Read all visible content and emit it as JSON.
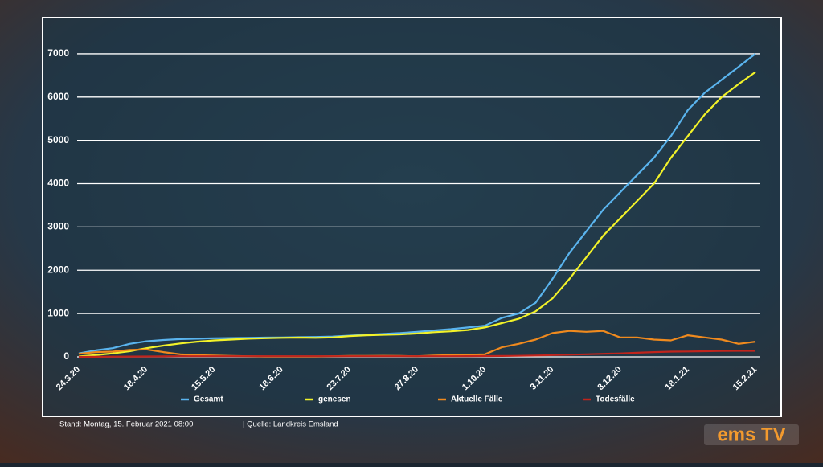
{
  "chart_data": {
    "type": "line",
    "categories": [
      "24.3.20",
      null,
      null,
      null,
      "18.4.20",
      null,
      null,
      null,
      "15.5.20",
      null,
      null,
      null,
      "18.6.20",
      null,
      null,
      null,
      "23.7.20",
      null,
      null,
      null,
      "27.8.20",
      null,
      null,
      null,
      "1.10.20",
      null,
      null,
      null,
      "3.11.20",
      null,
      null,
      null,
      "8.12.20",
      null,
      null,
      null,
      "18.1.21",
      null,
      null,
      null,
      "15.2.21"
    ],
    "series": [
      {
        "name": "Gesamt",
        "color": "#5ab4ee",
        "values": [
          80,
          150,
          200,
          300,
          360,
          390,
          410,
          420,
          430,
          435,
          440,
          445,
          450,
          455,
          460,
          470,
          490,
          510,
          530,
          550,
          580,
          610,
          640,
          680,
          720,
          900,
          1000,
          1250,
          1800,
          2400,
          2900,
          3400,
          3800,
          4200,
          4600,
          5100,
          5700,
          6100,
          6400,
          6700,
          7000
        ]
      },
      {
        "name": "genesen",
        "color": "#f2f229",
        "values": [
          10,
          40,
          80,
          130,
          200,
          260,
          310,
          350,
          380,
          400,
          420,
          430,
          440,
          445,
          440,
          450,
          480,
          500,
          510,
          520,
          540,
          570,
          590,
          620,
          680,
          780,
          880,
          1050,
          1350,
          1800,
          2300,
          2800,
          3200,
          3600,
          4000,
          4600,
          5100,
          5600,
          6000,
          6300,
          6580
        ]
      },
      {
        "name": "Aktuelle Fälle",
        "color": "#f08a1e",
        "values": [
          70,
          110,
          120,
          160,
          170,
          110,
          60,
          40,
          30,
          20,
          15,
          10,
          10,
          10,
          10,
          15,
          20,
          20,
          25,
          20,
          15,
          30,
          40,
          50,
          60,
          220,
          300,
          400,
          550,
          600,
          580,
          600,
          450,
          450,
          400,
          380,
          500,
          450,
          400,
          300,
          350
        ]
      },
      {
        "name": "Todesfälle",
        "color": "#c0241c",
        "values": [
          0,
          2,
          5,
          8,
          10,
          12,
          14,
          15,
          15,
          15,
          15,
          15,
          15,
          15,
          15,
          15,
          15,
          15,
          15,
          15,
          15,
          15,
          15,
          16,
          18,
          20,
          25,
          30,
          40,
          50,
          60,
          70,
          80,
          95,
          110,
          120,
          125,
          130,
          135,
          140,
          140
        ]
      }
    ],
    "ylim": [
      0,
      7500
    ],
    "yticks": [
      0,
      1000,
      2000,
      3000,
      4000,
      5000,
      6000,
      7000
    ],
    "grid": true,
    "legend": "bottom"
  },
  "footer": {
    "stand": "Stand:  Montag, 15. Februar 2021 08:00",
    "quelle": "| Quelle:   Landkreis Emsland"
  },
  "logo": "ems TV"
}
